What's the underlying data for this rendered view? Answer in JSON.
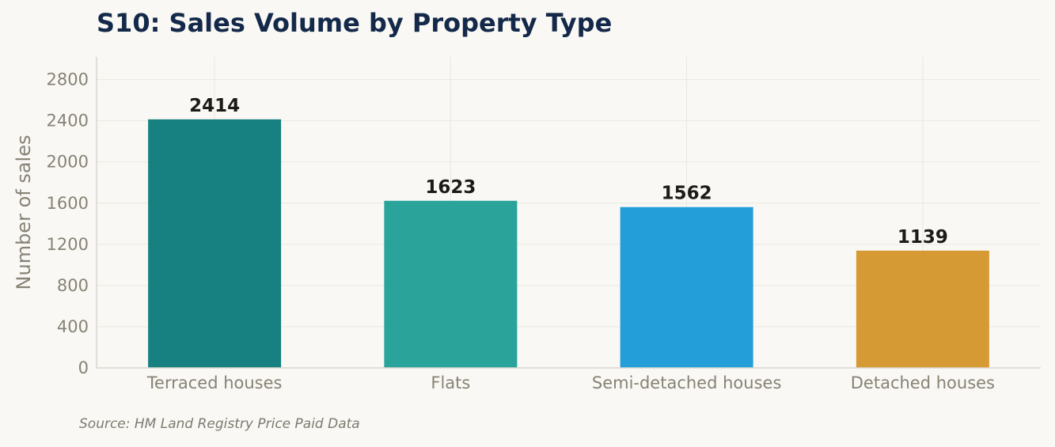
{
  "chart_data": {
    "type": "bar",
    "title": "S10: Sales Volume by Property Type",
    "ylabel": "Number of sales",
    "xlabel": "",
    "categories": [
      "Terraced houses",
      "Flats",
      "Semi-detached houses",
      "Detached houses"
    ],
    "values": [
      2414,
      1623,
      1562,
      1139
    ],
    "colors": [
      "#178080",
      "#2aa39a",
      "#239ed9",
      "#d69a34"
    ],
    "ylim": [
      0,
      3020
    ],
    "yticks": [
      0,
      400,
      800,
      1200,
      1600,
      2000,
      2400,
      2800
    ],
    "grid": true,
    "legend": "none",
    "source": "Source: HM Land Registry Price Paid Data"
  }
}
